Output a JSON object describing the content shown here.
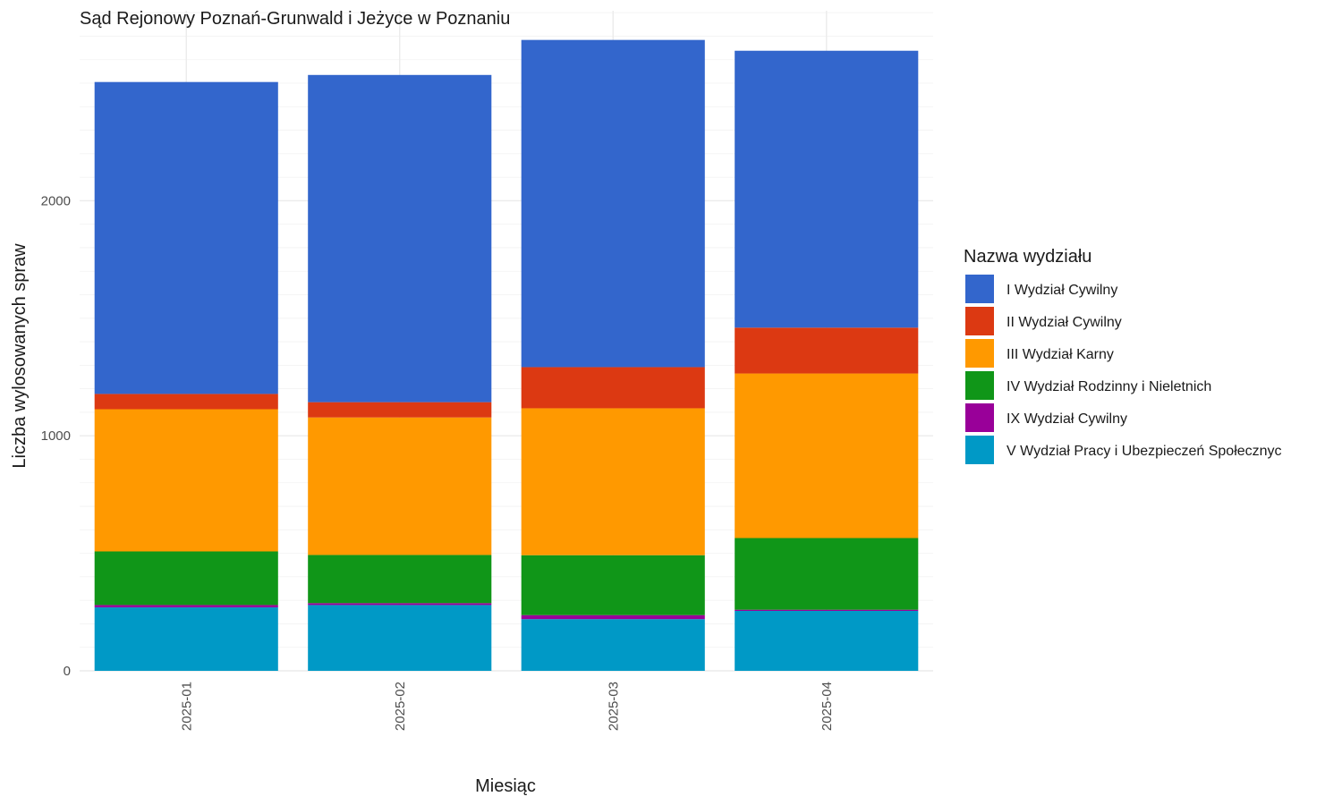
{
  "chart_data": {
    "type": "bar",
    "stacked": true,
    "title": "Sąd Rejonowy Poznań-Grunwald i Jeżyce w Poznaniu",
    "xlabel": "Miesiąc",
    "ylabel": "Liczba wylosowanych spraw",
    "categories": [
      "2025-01",
      "2025-02",
      "2025-03",
      "2025-04"
    ],
    "ylim": [
      0,
      2800
    ],
    "yticks": [
      0,
      1000,
      2000
    ],
    "yticks_labels": [
      "0",
      "1000",
      "2000"
    ],
    "grid": true,
    "legend": {
      "title": "Nazwa wydziału",
      "placement": "right"
    },
    "series": [
      {
        "name": "V Wydział Pracy i Ubezpieczeń Społecznyc",
        "color": "#0099c6",
        "values": [
          270,
          280,
          220,
          255
        ]
      },
      {
        "name": "IX Wydział Cywilny",
        "color": "#990099",
        "values": [
          10,
          8,
          17,
          5
        ]
      },
      {
        "name": "IV Wydział Rodzinny i Nieletnich",
        "color": "#109618",
        "values": [
          228,
          205,
          255,
          305
        ]
      },
      {
        "name": "III Wydział Karny",
        "color": "#ff9900",
        "values": [
          605,
          585,
          625,
          700
        ]
      },
      {
        "name": "II Wydział Cywilny",
        "color": "#dc3912",
        "values": [
          65,
          65,
          175,
          195
        ]
      },
      {
        "name": "I Wydział Cywilny",
        "color": "#3366cc",
        "values": [
          1327,
          1392,
          1392,
          1178
        ]
      }
    ],
    "legend_order": [
      "I Wydział Cywilny",
      "II Wydział Cywilny",
      "III Wydział Karny",
      "IV Wydział Rodzinny i Nieletnich",
      "IX Wydział Cywilny",
      "V Wydział Pracy i Ubezpieczeń Społecznyc"
    ]
  }
}
